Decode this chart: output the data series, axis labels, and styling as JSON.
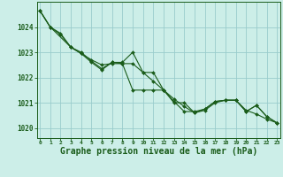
{
  "background_color": "#cceee8",
  "grid_color": "#99cccc",
  "line_color": "#1a5c1a",
  "marker_color": "#1a5c1a",
  "xlabel": "Graphe pression niveau de la mer (hPa)",
  "xlabel_fontsize": 7,
  "xticks": [
    0,
    1,
    2,
    3,
    4,
    5,
    6,
    7,
    8,
    9,
    10,
    11,
    12,
    13,
    14,
    15,
    16,
    17,
    18,
    19,
    20,
    21,
    22,
    23
  ],
  "yticks": [
    1020,
    1021,
    1022,
    1023,
    1024
  ],
  "ylim": [
    1019.6,
    1025.0
  ],
  "xlim": [
    -0.3,
    23.3
  ],
  "line1_x": [
    0,
    1,
    2,
    3,
    4,
    5,
    6,
    7,
    8,
    9,
    10,
    11,
    12,
    13,
    14,
    15,
    16,
    17,
    18,
    19,
    20,
    21,
    22,
    23
  ],
  "line1_y": [
    1024.65,
    1024.0,
    1023.7,
    1023.2,
    1022.95,
    1022.7,
    1022.5,
    1022.55,
    1022.55,
    1022.55,
    1022.2,
    1021.85,
    1021.5,
    1021.15,
    1020.85,
    1020.6,
    1020.7,
    1021.0,
    1021.1,
    1021.1,
    1020.7,
    1020.55,
    1020.35,
    1020.2
  ],
  "line2_x": [
    0,
    1,
    2,
    3,
    4,
    5,
    6,
    7,
    8,
    9,
    10,
    11,
    12,
    13,
    14,
    15,
    16,
    17,
    18,
    19,
    20,
    21,
    22,
    23
  ],
  "line2_y": [
    1024.65,
    1024.0,
    1023.75,
    1023.2,
    1023.0,
    1022.65,
    1022.35,
    1022.6,
    1022.6,
    1023.0,
    1022.2,
    1022.2,
    1021.5,
    1021.05,
    1020.65,
    1020.65,
    1020.75,
    1021.05,
    1021.1,
    1021.1,
    1020.65,
    1020.9,
    1020.45,
    1020.2
  ],
  "line3_x": [
    0,
    1,
    3,
    4,
    5,
    6,
    7,
    8,
    9,
    10,
    11,
    12,
    13,
    14,
    15,
    16,
    17,
    18,
    19,
    20,
    21,
    22,
    23
  ],
  "line3_y": [
    1024.65,
    1024.0,
    1023.2,
    1022.95,
    1022.6,
    1022.3,
    1022.6,
    1022.55,
    1021.5,
    1021.5,
    1021.5,
    1021.5,
    1021.0,
    1021.0,
    1020.6,
    1020.75,
    1021.05,
    1021.1,
    1021.1,
    1020.65,
    1020.9,
    1020.45,
    1020.2
  ]
}
